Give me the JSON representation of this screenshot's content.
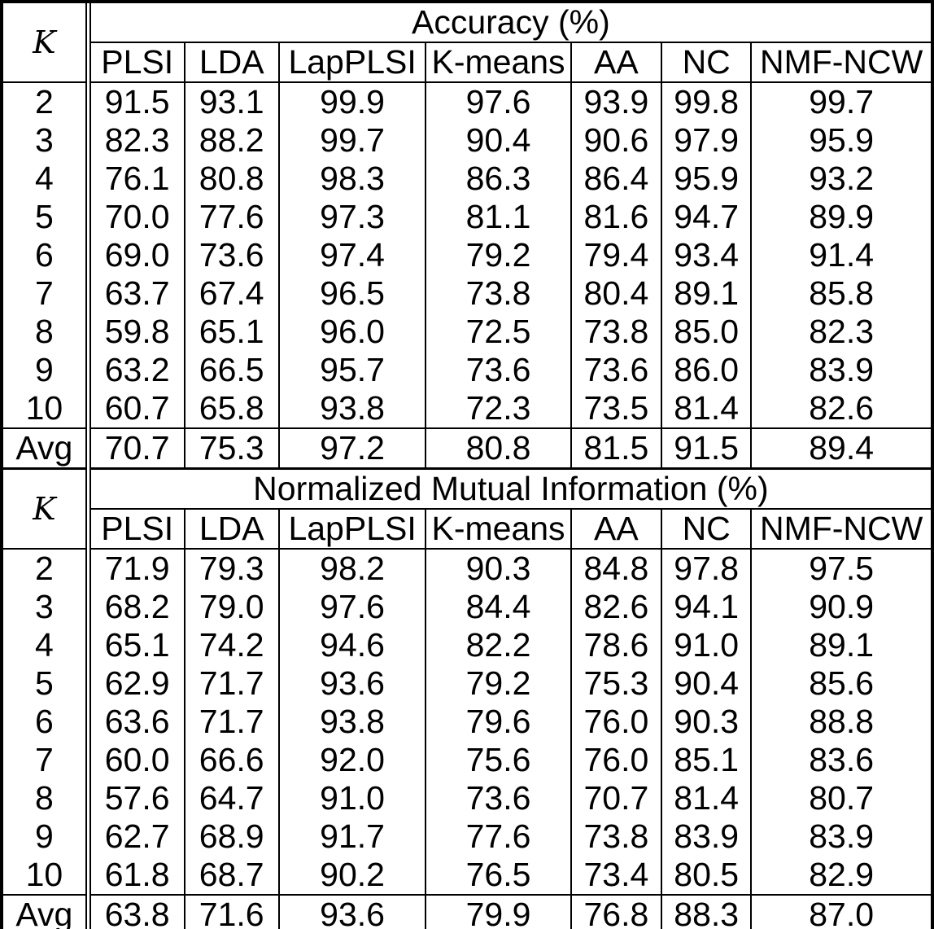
{
  "page": {
    "background_color": "#ffffff",
    "text_color": "#000000",
    "border_color": "#000000"
  },
  "chart_data": {
    "type": "table",
    "k_label": "K",
    "method_columns": [
      "PLSI",
      "LDA",
      "LapPLSI",
      "K-means",
      "AA",
      "NC",
      "NMF-NCW"
    ],
    "sections": [
      {
        "title": "Accuracy (%)",
        "rows": [
          {
            "k": "2",
            "values": [
              "91.5",
              "93.1",
              "99.9",
              "97.6",
              "93.9",
              "99.8",
              "99.7"
            ]
          },
          {
            "k": "3",
            "values": [
              "82.3",
              "88.2",
              "99.7",
              "90.4",
              "90.6",
              "97.9",
              "95.9"
            ]
          },
          {
            "k": "4",
            "values": [
              "76.1",
              "80.8",
              "98.3",
              "86.3",
              "86.4",
              "95.9",
              "93.2"
            ]
          },
          {
            "k": "5",
            "values": [
              "70.0",
              "77.6",
              "97.3",
              "81.1",
              "81.6",
              "94.7",
              "89.9"
            ]
          },
          {
            "k": "6",
            "values": [
              "69.0",
              "73.6",
              "97.4",
              "79.2",
              "79.4",
              "93.4",
              "91.4"
            ]
          },
          {
            "k": "7",
            "values": [
              "63.7",
              "67.4",
              "96.5",
              "73.8",
              "80.4",
              "89.1",
              "85.8"
            ]
          },
          {
            "k": "8",
            "values": [
              "59.8",
              "65.1",
              "96.0",
              "72.5",
              "73.8",
              "85.0",
              "82.3"
            ]
          },
          {
            "k": "9",
            "values": [
              "63.2",
              "66.5",
              "95.7",
              "73.6",
              "73.6",
              "86.0",
              "83.9"
            ]
          },
          {
            "k": "10",
            "values": [
              "60.7",
              "65.8",
              "93.8",
              "72.3",
              "73.5",
              "81.4",
              "82.6"
            ]
          },
          {
            "k": "Avg",
            "values": [
              "70.7",
              "75.3",
              "97.2",
              "80.8",
              "81.5",
              "91.5",
              "89.4"
            ]
          }
        ]
      },
      {
        "title": "Normalized Mutual Information (%)",
        "rows": [
          {
            "k": "2",
            "values": [
              "71.9",
              "79.3",
              "98.2",
              "90.3",
              "84.8",
              "97.8",
              "97.5"
            ]
          },
          {
            "k": "3",
            "values": [
              "68.2",
              "79.0",
              "97.6",
              "84.4",
              "82.6",
              "94.1",
              "90.9"
            ]
          },
          {
            "k": "4",
            "values": [
              "65.1",
              "74.2",
              "94.6",
              "82.2",
              "78.6",
              "91.0",
              "89.1"
            ]
          },
          {
            "k": "5",
            "values": [
              "62.9",
              "71.7",
              "93.6",
              "79.2",
              "75.3",
              "90.4",
              "85.6"
            ]
          },
          {
            "k": "6",
            "values": [
              "63.6",
              "71.7",
              "93.8",
              "79.6",
              "76.0",
              "90.3",
              "88.8"
            ]
          },
          {
            "k": "7",
            "values": [
              "60.0",
              "66.6",
              "92.0",
              "75.6",
              "76.0",
              "85.1",
              "83.6"
            ]
          },
          {
            "k": "8",
            "values": [
              "57.6",
              "64.7",
              "91.0",
              "73.6",
              "70.7",
              "81.4",
              "80.7"
            ]
          },
          {
            "k": "9",
            "values": [
              "62.7",
              "68.9",
              "91.7",
              "77.6",
              "73.8",
              "83.9",
              "83.9"
            ]
          },
          {
            "k": "10",
            "values": [
              "61.8",
              "68.7",
              "90.2",
              "76.5",
              "73.4",
              "80.5",
              "82.9"
            ]
          },
          {
            "k": "Avg",
            "values": [
              "63.8",
              "71.6",
              "93.6",
              "79.9",
              "76.8",
              "88.3",
              "87.0"
            ]
          }
        ]
      }
    ]
  }
}
